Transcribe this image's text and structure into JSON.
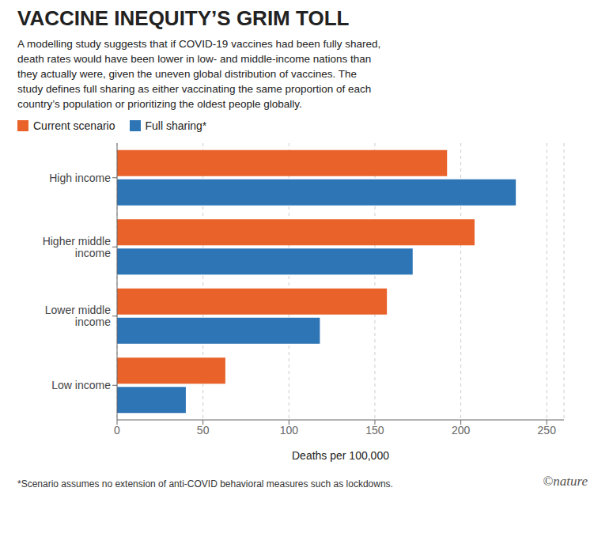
{
  "chart_data": {
    "type": "bar",
    "orientation": "horizontal",
    "title": "VACCINE INEQUITY’S GRIM TOLL",
    "subtitle": "A modelling study suggests that if COVID-19 vaccines had been fully shared,\ndeath rates would have been lower in low- and middle-income nations than\nthey actually were, given the uneven global distribution of vaccines. The\nstudy defines full sharing as either vaccinating the same proportion of each\ncountry’s population or prioritizing the oldest people globally.",
    "categories": [
      "High income",
      "Higher middle\nincome",
      "Lower middle\nincome",
      "Low income"
    ],
    "series": [
      {
        "name": "Current scenario",
        "color": "#E8622A",
        "values": [
          192,
          208,
          157,
          63
        ]
      },
      {
        "name": "Full sharing*",
        "color": "#2E75B6",
        "values": [
          232,
          172,
          118,
          40
        ]
      }
    ],
    "xlabel": "Deaths per 100,000",
    "xlim": [
      0,
      260
    ],
    "xticks": [
      0,
      50,
      100,
      150,
      200,
      250
    ],
    "grid": true,
    "legend": "upper left",
    "annotations": [
      "*Scenario assumes no extension of anti-COVID behavioral measures such as lockdowns.",
      "©nature"
    ]
  }
}
